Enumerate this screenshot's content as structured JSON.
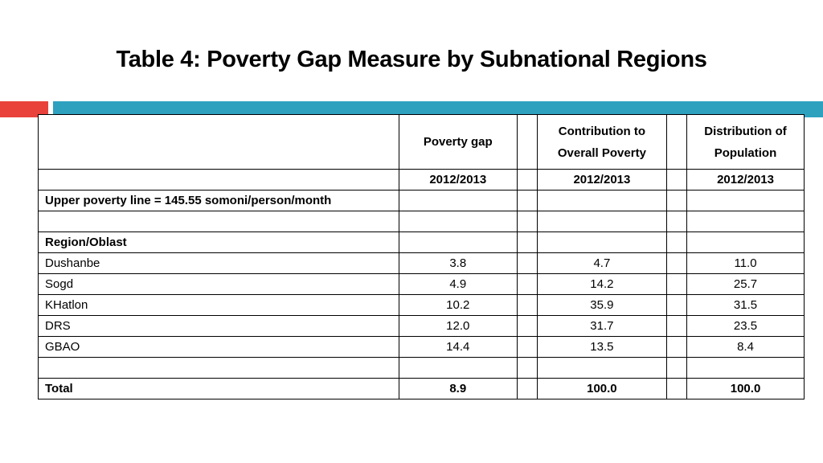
{
  "title": "Table 4: Poverty Gap Measure by Subnational Regions",
  "columns": {
    "poverty_gap": "Poverty gap",
    "contribution": "Contribution to Overall Poverty",
    "distribution": "Distribution of Population"
  },
  "year_row": {
    "poverty_gap": "2012/2013",
    "contribution": "2012/2013",
    "distribution": "2012/2013"
  },
  "poverty_line_label": "Upper poverty line = 145.55 somoni/person/month",
  "section_label": "Region/Oblast",
  "rows": [
    {
      "region": "Dushanbe",
      "poverty_gap": "3.8",
      "contribution": "4.7",
      "distribution": "11.0"
    },
    {
      "region": "Sogd",
      "poverty_gap": "4.9",
      "contribution": "14.2",
      "distribution": "25.7"
    },
    {
      "region": "KHatlon",
      "poverty_gap": "10.2",
      "contribution": "35.9",
      "distribution": "31.5"
    },
    {
      "region": "DRS",
      "poverty_gap": "12.0",
      "contribution": "31.7",
      "distribution": "23.5"
    },
    {
      "region": "GBAO",
      "poverty_gap": "14.4",
      "contribution": "13.5",
      "distribution": "8.4"
    }
  ],
  "total": {
    "label": "Total",
    "poverty_gap": "8.9",
    "contribution": "100.0",
    "distribution": "100.0"
  },
  "colors": {
    "accent_red": "#e8423a",
    "accent_blue": "#2ea1bf"
  }
}
